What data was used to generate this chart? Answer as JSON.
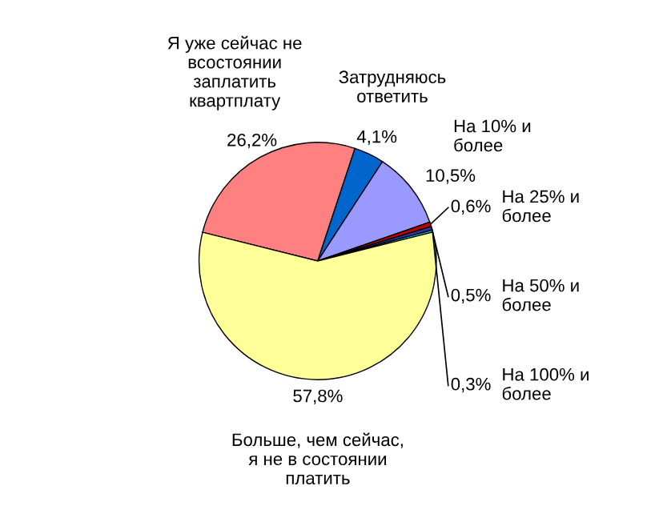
{
  "chart_data": {
    "type": "pie",
    "categories": [
      "Я уже сейчас не\nвсостоянии\nзаплатить\nквартплату",
      "Затрудняюсь\nответить",
      "На 10% и\nболее",
      "На 25% и\nболее",
      "На 50% и\nболее",
      "На 100% и\nболее",
      "Больше, чем сейчас,\nя не в состоянии\nплатить"
    ],
    "values": [
      26.2,
      4.1,
      10.5,
      0.6,
      0.5,
      0.3,
      57.8
    ],
    "colors": [
      "#ff8080",
      "#0066cc",
      "#9999ff",
      "#c00000",
      "#333399",
      "#00ccff",
      "#ffff99"
    ],
    "value_labels": [
      "26,2%",
      "4,1%",
      "10,5%",
      "0,6%",
      "0,5%",
      "0,3%",
      "57,8%"
    ]
  }
}
